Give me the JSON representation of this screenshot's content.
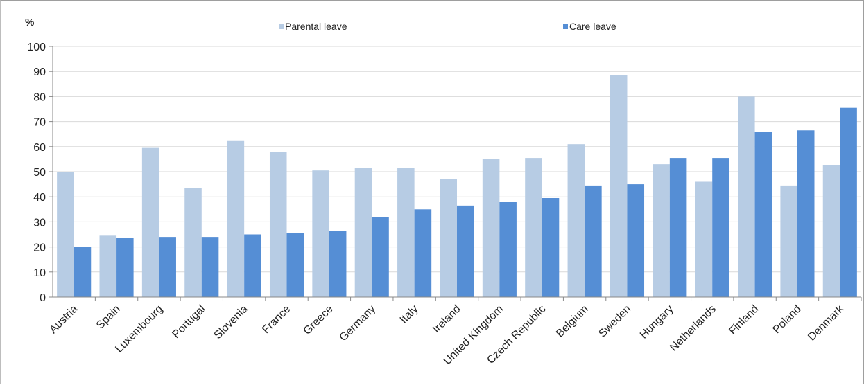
{
  "chart_data": {
    "type": "bar",
    "unit_label": "%",
    "categories": [
      "Austria",
      "Spain",
      "Luxembourg",
      "Portugal",
      "Slovenia",
      "France",
      "Greece",
      "Germany",
      "Italy",
      "Ireland",
      "United Kingdom",
      "Czech Republic",
      "Belgium",
      "Sweden",
      "Hungary",
      "Netherlands",
      "Finland",
      "Poland",
      "Denmark"
    ],
    "series": [
      {
        "name": "Parental leave",
        "color": "#b7cce4",
        "values": [
          50,
          24.5,
          59.5,
          43.5,
          62.5,
          58,
          50.5,
          51.5,
          51.5,
          47,
          55,
          55.5,
          61,
          88.5,
          53,
          46,
          80,
          44.5,
          52.5
        ]
      },
      {
        "name": "Care leave",
        "color": "#558ed5",
        "values": [
          20,
          23.5,
          24,
          24,
          25,
          25.5,
          26.5,
          32,
          35,
          36.5,
          38,
          39.5,
          44.5,
          45,
          55.5,
          55.5,
          66,
          66.5,
          75.5
        ]
      }
    ],
    "ylim": [
      0,
      100
    ],
    "yticks": [
      0,
      10,
      20,
      30,
      40,
      50,
      60,
      70,
      80,
      90,
      100
    ],
    "grid": true,
    "legend_position": "top"
  }
}
